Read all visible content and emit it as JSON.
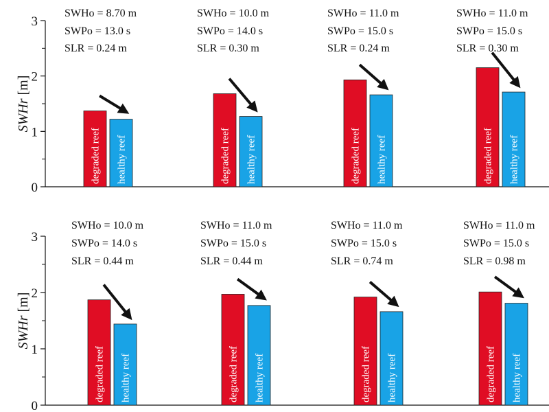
{
  "chart_data": [
    {
      "type": "bar",
      "ylabel": "SWHr [m]",
      "ylim": [
        0,
        3
      ],
      "yticks": [
        0,
        1,
        2,
        3
      ],
      "colors": {
        "degraded reef": "#e00d24",
        "healthy reef": "#19a3e6"
      },
      "groups": [
        {
          "swho": "SWHo = 8.70 m",
          "swpo": "SWPo = 13.0 s",
          "slr": "SLR = 0.24 m",
          "bars": [
            {
              "label": "degraded reef",
              "value": 1.37
            },
            {
              "label": "healthy reef",
              "value": 1.22
            }
          ]
        },
        {
          "swho": "SWHo = 10.0 m",
          "swpo": "SWPo = 14.0 s",
          "slr": "SLR = 0.30 m",
          "bars": [
            {
              "label": "degraded reef",
              "value": 1.68
            },
            {
              "label": "healthy reef",
              "value": 1.27
            }
          ]
        },
        {
          "swho": "SWHo = 11.0 m",
          "swpo": "SWPo = 15.0 s",
          "slr": "SLR = 0.24 m",
          "bars": [
            {
              "label": "degraded reef",
              "value": 1.93
            },
            {
              "label": "healthy reef",
              "value": 1.66
            }
          ]
        },
        {
          "swho": "SWHo = 11.0 m",
          "swpo": "SWPo = 15.0 s",
          "slr": "SLR = 0.30 m",
          "bars": [
            {
              "label": "degraded reef",
              "value": 2.15
            },
            {
              "label": "healthy reef",
              "value": 1.71
            }
          ]
        }
      ]
    },
    {
      "type": "bar",
      "ylabel": "SWHr [m]",
      "ylim": [
        0,
        3
      ],
      "yticks": [
        0,
        1,
        2,
        3
      ],
      "colors": {
        "degraded reef": "#e00d24",
        "healthy reef": "#19a3e6"
      },
      "groups": [
        {
          "swho": "SWHo = 10.0 m",
          "swpo": "SWPo = 14.0 s",
          "slr": "SLR = 0.44 m",
          "bars": [
            {
              "label": "degraded reef",
              "value": 1.87
            },
            {
              "label": "healthy reef",
              "value": 1.44
            }
          ]
        },
        {
          "swho": "SWHo = 11.0 m",
          "swpo": "SWPo = 15.0 s",
          "slr": "SLR = 0.44 m",
          "bars": [
            {
              "label": "degraded reef",
              "value": 1.97
            },
            {
              "label": "healthy reef",
              "value": 1.77
            }
          ]
        },
        {
          "swho": "SWHo = 11.0 m",
          "swpo": "SWPo = 15.0 s",
          "slr": "SLR = 0.74 m",
          "bars": [
            {
              "label": "degraded reef",
              "value": 1.92
            },
            {
              "label": "healthy reef",
              "value": 1.66
            }
          ]
        },
        {
          "swho": "SWHo = 11.0 m",
          "swpo": "SWPo = 15.0 s",
          "slr": "SLR = 0.98 m",
          "bars": [
            {
              "label": "degraded reef",
              "value": 2.01
            },
            {
              "label": "healthy reef",
              "value": 1.81
            }
          ]
        }
      ]
    }
  ]
}
